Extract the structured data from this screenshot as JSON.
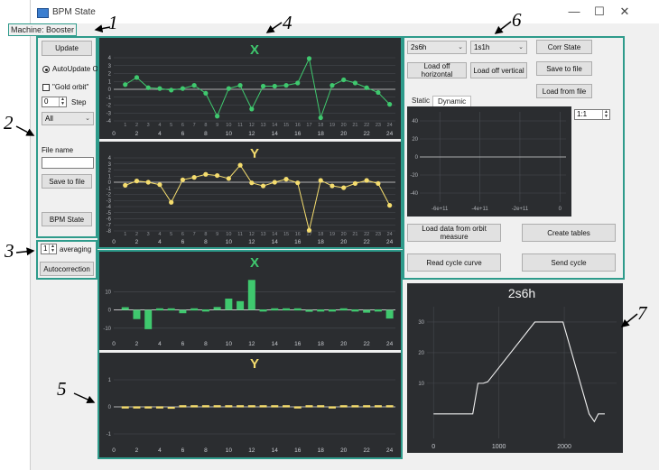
{
  "window": {
    "title": "BPM State",
    "minimize": "—",
    "maximize": "☐",
    "close": "✕"
  },
  "machine_label": "Machine: Booster",
  "left_panel": {
    "update_button": "Update",
    "autoupdate_label": "AutoUpdate On",
    "gold_orbit_label": "\"Gold orbit\"",
    "step_value": "0",
    "step_label": "Step",
    "combo_value": "All",
    "file_name_label": "File name",
    "file_name_value": "",
    "save_button": "Save to file",
    "bpm_state_button": "BPM State"
  },
  "averaging": {
    "value": "1",
    "label": "averaging",
    "autocorrection_button": "Autocorrection"
  },
  "orbit_plots": {
    "x": {
      "title": "X",
      "color": "#3fc86e",
      "yticks": [
        "4",
        "3",
        "2",
        "1",
        "0",
        "-1",
        "-2",
        "-3",
        "-4"
      ],
      "bpm_labels": [
        "1",
        "2",
        "3",
        "4",
        "5",
        "6",
        "7",
        "8",
        "9",
        "10",
        "11",
        "12",
        "13",
        "14",
        "15",
        "16",
        "17",
        "18",
        "19",
        "20",
        "21",
        "22",
        "23",
        "24"
      ],
      "xticks": [
        "0",
        "2",
        "4",
        "6",
        "8",
        "10",
        "12",
        "14",
        "16",
        "18",
        "20",
        "22",
        "24"
      ],
      "values": [
        0.6,
        1.5,
        0.2,
        0.1,
        -0.1,
        0.1,
        0.5,
        -0.5,
        -3.4,
        0.1,
        0.5,
        -2.5,
        0.4,
        0.4,
        0.5,
        0.8,
        3.9,
        -3.6,
        0.5,
        1.2,
        0.8,
        0.2,
        -0.4,
        -1.9
      ]
    },
    "y": {
      "title": "Y",
      "color": "#f5dd6e",
      "yticks": [
        "4",
        "3",
        "2",
        "1",
        "0",
        "-1",
        "-2",
        "-3",
        "-4",
        "-5",
        "-6",
        "-7",
        "-8"
      ],
      "bpm_labels": [
        "1",
        "2",
        "3",
        "4",
        "5",
        "6",
        "7",
        "8",
        "9",
        "10",
        "11",
        "12",
        "13",
        "14",
        "15",
        "16",
        "17",
        "18",
        "19",
        "20",
        "21",
        "22",
        "23",
        "24"
      ],
      "xticks": [
        "0",
        "2",
        "4",
        "6",
        "8",
        "10",
        "12",
        "14",
        "16",
        "18",
        "20",
        "22",
        "24"
      ],
      "values": [
        -0.5,
        0.2,
        0,
        -0.4,
        -3.3,
        0.4,
        0.8,
        1.3,
        1.1,
        0.6,
        2.8,
        -0.1,
        -0.6,
        0,
        0.5,
        -0.1,
        -7.9,
        0.3,
        -0.6,
        -0.9,
        -0.2,
        0.3,
        -0.2,
        -3.8
      ]
    }
  },
  "correction_plots": {
    "x": {
      "title": "X",
      "color": "#3fc86e",
      "yticks": [
        "10",
        "0",
        "-10"
      ],
      "xticks": [
        "0",
        "2",
        "4",
        "6",
        "8",
        "10",
        "12",
        "14",
        "16",
        "18",
        "20",
        "22",
        "24"
      ],
      "values": [
        1.5,
        -5,
        -10.5,
        0,
        0,
        -1.8,
        0.4,
        -0.8,
        1.6,
        6.2,
        4.8,
        16.4,
        -0.2,
        0,
        0,
        0.3,
        -1,
        -0.8,
        -0.8,
        0,
        -0.8,
        -1.5,
        -0.6,
        -4.7
      ]
    },
    "y": {
      "title": "Y",
      "color": "#f5dd6e",
      "yticks": [
        "1",
        "0",
        "-1"
      ],
      "xticks": [
        "0",
        "2",
        "4",
        "6",
        "8",
        "10",
        "12",
        "14",
        "16",
        "18",
        "20",
        "22",
        "24"
      ],
      "values": [
        -0.05,
        -0.03,
        -0.02,
        -0.05,
        -0.07,
        0,
        0.01,
        0,
        0.03,
        0.01,
        0.02,
        0,
        0.04,
        0.02,
        0,
        -0.02,
        0,
        0.01,
        -0.01,
        0,
        0.01,
        0.03,
        0.02,
        0
      ]
    }
  },
  "right_panel": {
    "combo1_value": "2s6h",
    "combo2_value": "1s1h",
    "corr_state_button": "Corr State",
    "load_horizontal_button": "Load off horizontal",
    "load_vertical_button": "Load off vertical",
    "save_button": "Save to file",
    "load_file_button": "Load from file",
    "tab_static": "Static",
    "tab_dynamic": "Dynamic",
    "scale_value": "1:1",
    "empty_plot": {
      "yticks": [
        "40",
        "20",
        "0",
        "-20",
        "-40"
      ],
      "xticks": [
        "-6e+11",
        "-4e+11",
        "-2e+11",
        "0"
      ]
    },
    "load_orbit_button": "Load data from orbit measure",
    "create_tables_button": "Create tables",
    "read_cycle_button": "Read cycle curve",
    "send_cycle_button": "Send cycle"
  },
  "cycle_plot": {
    "title": "2s6h",
    "yticks": [
      "30",
      "20",
      "10"
    ],
    "xticks": [
      "0",
      "1000",
      "2000"
    ],
    "points": [
      [
        0,
        0
      ],
      [
        120,
        0
      ],
      [
        600,
        0
      ],
      [
        680,
        10
      ],
      [
        760,
        10
      ],
      [
        830,
        10.5
      ],
      [
        1550,
        30
      ],
      [
        1980,
        30
      ],
      [
        2380,
        0
      ],
      [
        2460,
        -2.5
      ],
      [
        2520,
        0
      ],
      [
        2620,
        0
      ]
    ]
  },
  "annotations": {
    "a1": "1",
    "a2": "2",
    "a3": "3",
    "a4": "4",
    "a5": "5",
    "a6": "6",
    "a7": "7"
  }
}
